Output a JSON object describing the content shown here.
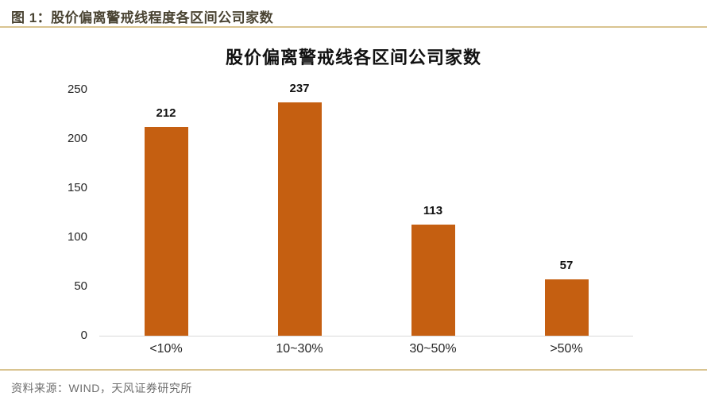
{
  "page": {
    "figure_caption": "图 1：股价偏离警戒线程度各区间公司家数",
    "source_note": "资料来源：WIND，天风证券研究所"
  },
  "colors": {
    "bar": "#c55f11",
    "rule_line": "#d9c490",
    "axis_line": "#d9d9d9",
    "caption_text": "#4a4433",
    "source_text": "#6e6e6e"
  },
  "chart_data": {
    "type": "bar",
    "title": "股价偏离警戒线各区间公司家数",
    "categories": [
      "<10%",
      "10~30%",
      "30~50%",
      ">50%"
    ],
    "values": [
      212,
      237,
      113,
      57
    ],
    "xlabel": "",
    "ylabel": "",
    "ylim": [
      0,
      250
    ],
    "yticks": [
      0,
      50,
      100,
      150,
      200,
      250
    ],
    "grid": false,
    "legend": "none",
    "data_labels": true
  }
}
